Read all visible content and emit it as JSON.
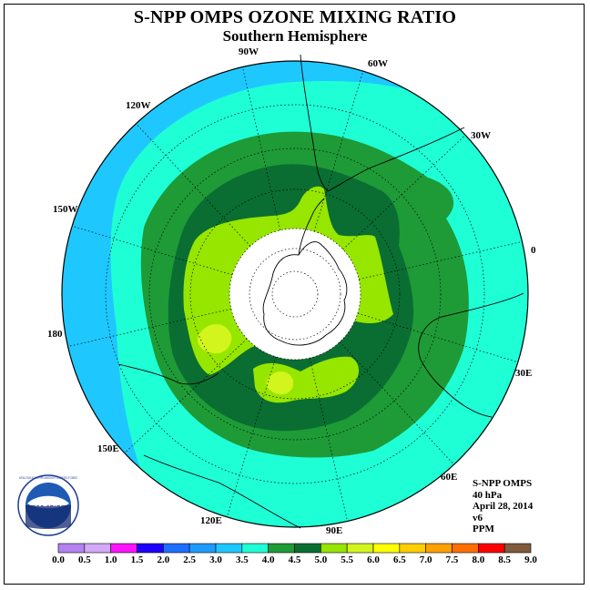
{
  "header": {
    "title": "S-NPP OMPS OZONE MIXING RATIO",
    "subtitle": "Southern Hemisphere"
  },
  "map": {
    "projection": "polar stereographic, south pole",
    "longitude_labels": [
      "90W",
      "60W",
      "30W",
      "0",
      "30E",
      "60E",
      "90E",
      "120E",
      "150E",
      "180",
      "150W",
      "120W"
    ],
    "fill_colors": {
      "3.0-3.5": "#1ec8ff",
      "3.5-4.0": "#1effd6",
      "4.0-4.5": "#1e9b37",
      "4.5-5.0": "#0a6e32",
      "5.0-5.5": "#96e600",
      "5.5-6.0": "#d2f51e"
    }
  },
  "info": {
    "instrument": "S-NPP OMPS",
    "level": "40 hPa",
    "date": "April 28, 2014",
    "version": "v6",
    "units": "PPM"
  },
  "colorbar": {
    "ticks": [
      "0.0",
      "0.5",
      "1.0",
      "1.5",
      "2.0",
      "2.5",
      "3.0",
      "3.5",
      "4.0",
      "4.5",
      "5.0",
      "5.5",
      "6.0",
      "6.5",
      "7.0",
      "7.5",
      "8.0",
      "8.5",
      "9.0"
    ],
    "colors": [
      "#b482f0",
      "#d2aaf5",
      "#ff14ff",
      "#1e00ff",
      "#1e6eff",
      "#1e9bff",
      "#1ec8ff",
      "#1effd6",
      "#1e9b37",
      "#0a6e32",
      "#96e600",
      "#d2f51e",
      "#ffff00",
      "#ffcd00",
      "#ffa000",
      "#ff6e00",
      "#ff0000",
      "#825a3c"
    ]
  },
  "logo": {
    "text": "NOAA",
    "ring_text": "NATIONAL OCEANIC AND ATMOSPHERIC ADMINISTRATION · U.S. DEPARTMENT OF COMMERCE"
  }
}
